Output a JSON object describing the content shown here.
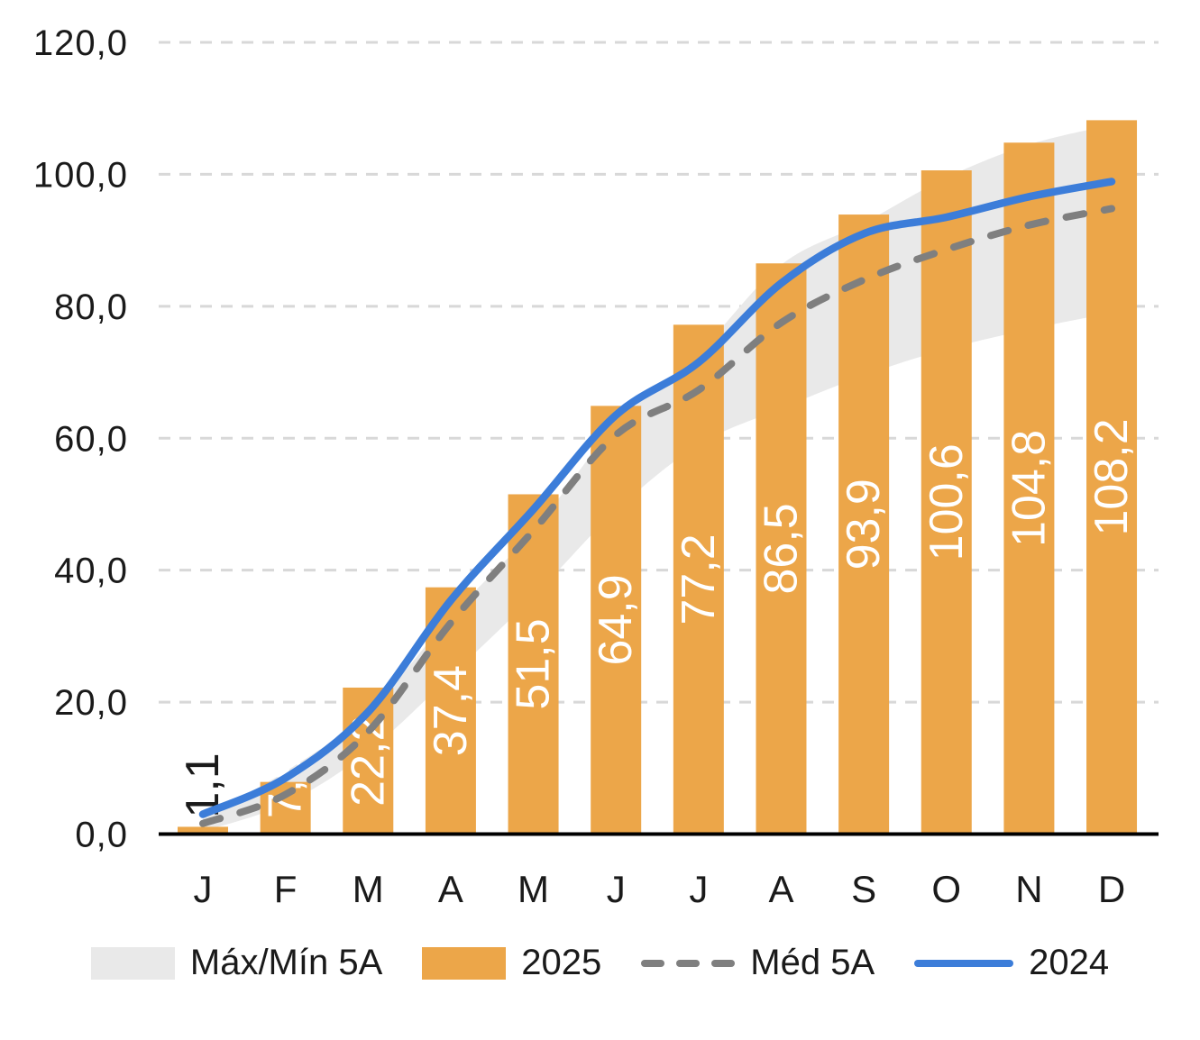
{
  "chart_data": {
    "type": "combo",
    "title": "",
    "categories": [
      "J",
      "F",
      "M",
      "A",
      "M",
      "J",
      "J",
      "A",
      "S",
      "O",
      "N",
      "D"
    ],
    "ylim": [
      0,
      120
    ],
    "grid": "horizontal-dashed",
    "legend_position": "bottom",
    "decimal_separator": ",",
    "yticks": [
      {
        "value": 0,
        "label": "0,0"
      },
      {
        "value": 20,
        "label": "20,0"
      },
      {
        "value": 40,
        "label": "40,0"
      },
      {
        "value": 60,
        "label": "60,0"
      },
      {
        "value": 80,
        "label": "80,0"
      },
      {
        "value": 100,
        "label": "100,0"
      },
      {
        "value": 120,
        "label": "120,0"
      }
    ],
    "series": [
      {
        "name": "Máx/Mín 5A",
        "type": "band",
        "color": "#E9E9E9",
        "max": [
          2.6,
          9.5,
          18.5,
          33.0,
          46.0,
          62.0,
          73.0,
          86.3,
          92.6,
          99.5,
          104.5,
          107.5
        ],
        "min": [
          0.4,
          4.6,
          12.5,
          24.0,
          36.0,
          49.0,
          59.0,
          64.5,
          69.5,
          73.5,
          76.5,
          79.0
        ]
      },
      {
        "name": "2025",
        "type": "bar",
        "color": "#ECA649",
        "label_color": "#FFFFFF",
        "first_label_color": "#1A1A1A",
        "values": [
          1.1,
          7.9,
          22.2,
          37.4,
          51.5,
          64.9,
          77.2,
          86.5,
          93.9,
          100.6,
          104.8,
          108.2
        ],
        "labels": [
          "1,1",
          "7,9",
          "22,2",
          "37,4",
          "51,5",
          "64,9",
          "77,2",
          "86,5",
          "93,9",
          "100,6",
          "104,8",
          "108,2"
        ]
      },
      {
        "name": "Méd 5A",
        "type": "line-dashed",
        "color": "#7F7F7F",
        "values": [
          1.6,
          6.0,
          15.5,
          32.0,
          46.0,
          60.5,
          67.3,
          77.5,
          84.0,
          88.6,
          92.3,
          94.8
        ]
      },
      {
        "name": "2024",
        "type": "line",
        "color": "#3C7DD9",
        "values": [
          3.0,
          8.5,
          18.5,
          35.4,
          49.2,
          63.5,
          71.5,
          83.5,
          91.0,
          93.5,
          96.6,
          98.9
        ]
      }
    ]
  },
  "legend": {
    "items": [
      {
        "label": "Máx/Mín 5A"
      },
      {
        "label": "2025"
      },
      {
        "label": "Méd 5A"
      },
      {
        "label": "2024"
      }
    ]
  },
  "colors": {
    "background": "#FFFFFF",
    "gridline": "#D8D8D8",
    "axis": "#000000",
    "text": "#1A1A1A"
  }
}
